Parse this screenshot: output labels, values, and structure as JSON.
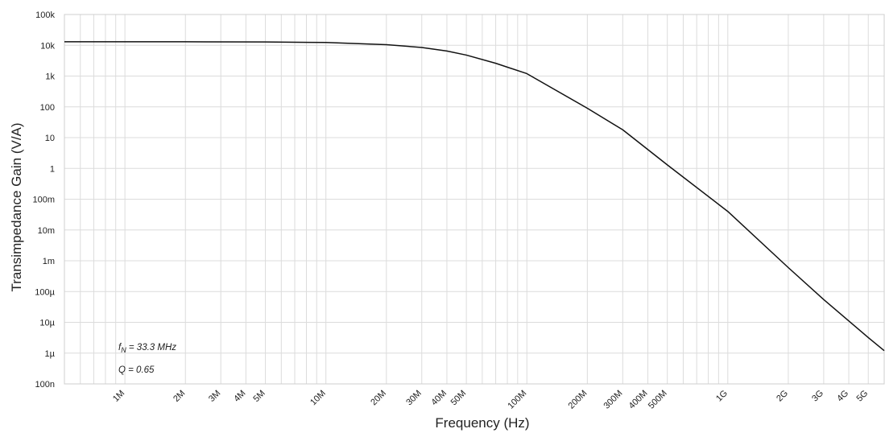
{
  "chart_data": {
    "type": "line",
    "xlabel": "Frequency (Hz)",
    "ylabel": "Transimpedance Gain (V/A)",
    "x_scale": "log",
    "y_scale": "log",
    "xlim": [
      500000,
      6000000000
    ],
    "ylim": [
      1e-07,
      100000
    ],
    "grid": true,
    "x_ticks": [
      {
        "value": 1000000,
        "label": "1M"
      },
      {
        "value": 2000000,
        "label": "2M"
      },
      {
        "value": 3000000,
        "label": "3M"
      },
      {
        "value": 4000000,
        "label": "4M"
      },
      {
        "value": 5000000,
        "label": "5M"
      },
      {
        "value": 10000000,
        "label": "10M"
      },
      {
        "value": 20000000,
        "label": "20M"
      },
      {
        "value": 30000000,
        "label": "30M"
      },
      {
        "value": 40000000,
        "label": "40M"
      },
      {
        "value": 50000000,
        "label": "50M"
      },
      {
        "value": 100000000,
        "label": "100M"
      },
      {
        "value": 200000000,
        "label": "200M"
      },
      {
        "value": 300000000,
        "label": "300M"
      },
      {
        "value": 400000000,
        "label": "400M"
      },
      {
        "value": 500000000,
        "label": "500M"
      },
      {
        "value": 1000000000,
        "label": "1G"
      },
      {
        "value": 2000000000,
        "label": "2G"
      },
      {
        "value": 3000000000,
        "label": "3G"
      },
      {
        "value": 4000000000,
        "label": "4G"
      },
      {
        "value": 5000000000,
        "label": "5G"
      }
    ],
    "y_ticks": [
      {
        "value": 100000,
        "label": "100k"
      },
      {
        "value": 10000,
        "label": "10k"
      },
      {
        "value": 1000,
        "label": "1k"
      },
      {
        "value": 100,
        "label": "100"
      },
      {
        "value": 10,
        "label": "10"
      },
      {
        "value": 1,
        "label": "1"
      },
      {
        "value": 0.1,
        "label": "100m"
      },
      {
        "value": 0.01,
        "label": "10m"
      },
      {
        "value": 0.001,
        "label": "1m"
      },
      {
        "value": 0.0001,
        "label": "100µ"
      },
      {
        "value": 1e-05,
        "label": "10µ"
      },
      {
        "value": 1e-06,
        "label": "1µ"
      },
      {
        "value": 1e-07,
        "label": "100n"
      }
    ],
    "series": [
      {
        "color": "#111111",
        "x": [
          500000,
          1000000,
          2000000,
          5000000,
          10000000,
          20000000,
          30000000,
          40000000,
          50000000,
          70000000,
          100000000,
          200000000,
          300000000,
          500000000,
          1000000000,
          2000000000,
          3000000000,
          5000000000,
          6000000000
        ],
        "y": [
          13000,
          13000,
          13000,
          12800,
          12300,
          10500,
          8500,
          6500,
          4800,
          2600,
          1200,
          90,
          18,
          1.3,
          0.04,
          0.0006,
          5.5e-05,
          3.2e-06,
          1.2e-06
        ]
      }
    ],
    "annotations": {
      "fn_symbol": "f",
      "fn_subscript": "N",
      "fn_value": " = 33.3 MHz",
      "q_text": "Q = 0.65"
    }
  }
}
